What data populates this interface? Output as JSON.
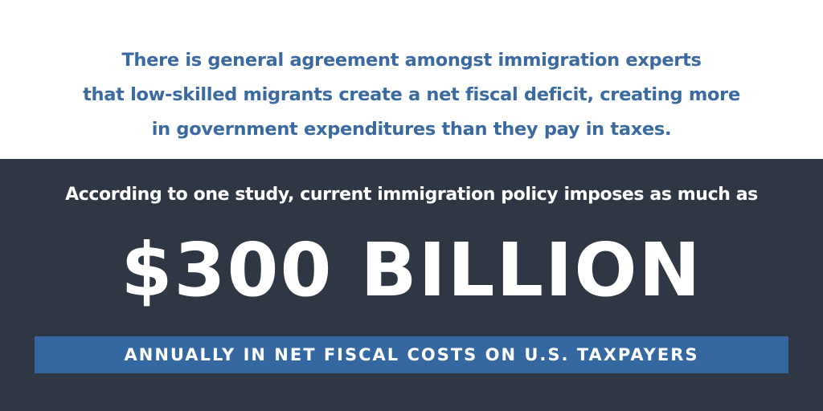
{
  "intro": {
    "lines": [
      "There is general agreement amongst immigration experts",
      "that low-skilled migrants create a net fiscal deficit, creating more",
      "in government expenditures than they pay in taxes."
    ]
  },
  "highlight": {
    "lead": "According to one study, current immigration policy imposes as much as",
    "headline": "$300 BILLION",
    "banner": "ANNUALLY IN NET FISCAL COSTS ON U.S. TAXPAYERS"
  }
}
